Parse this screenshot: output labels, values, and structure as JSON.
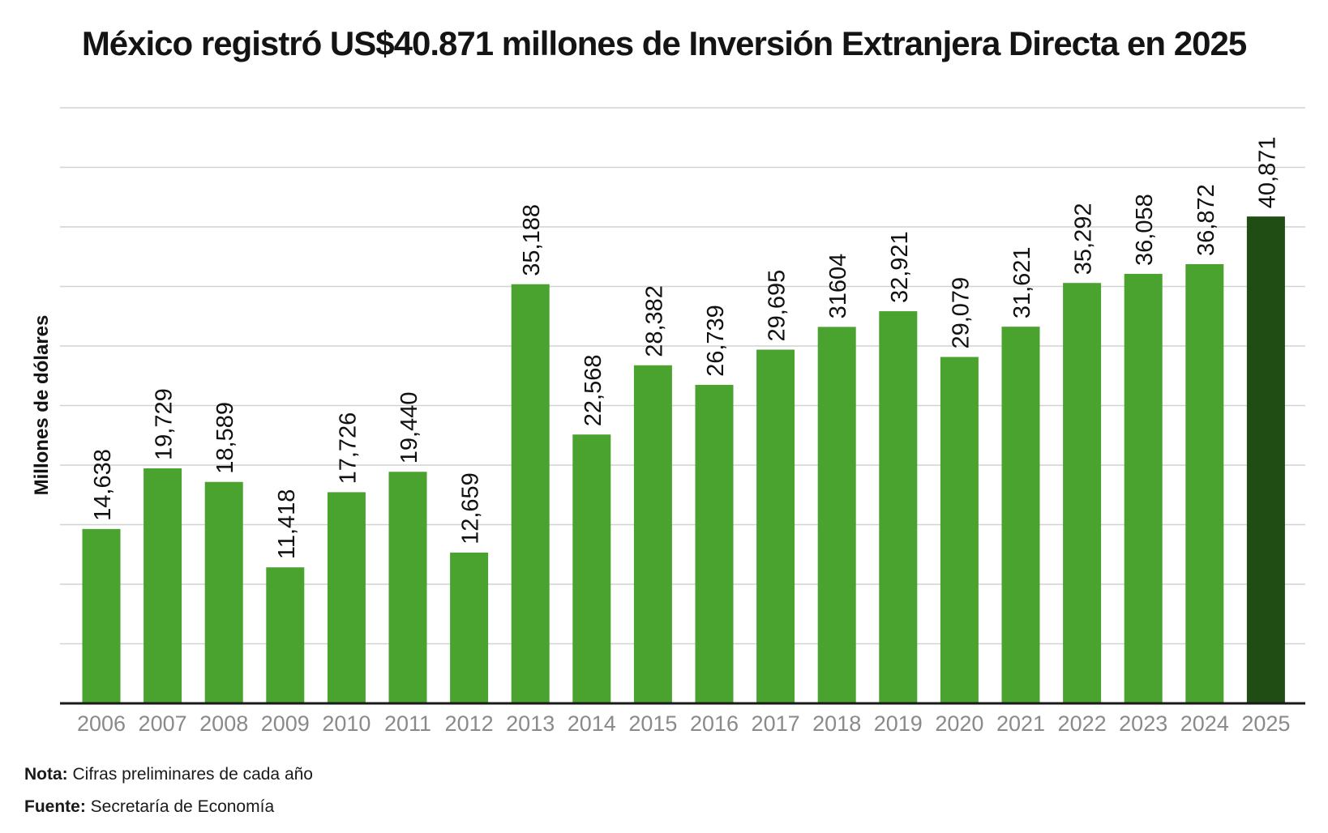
{
  "chart_data": {
    "type": "bar",
    "title": "México registró US$40.871 millones de Inversión Extranjera Directa en 2025",
    "xlabel": "",
    "ylabel": "Millones de dólares",
    "categories": [
      "2006",
      "2007",
      "2008",
      "2009",
      "2010",
      "2011",
      "2012",
      "2013",
      "2014",
      "2015",
      "2016",
      "2017",
      "2018",
      "2019",
      "2020",
      "2021",
      "2022",
      "2023",
      "2024",
      "2025"
    ],
    "values": [
      14638,
      19729,
      18589,
      11418,
      17726,
      19440,
      12659,
      35188,
      22568,
      28382,
      26739,
      29695,
      31604,
      32921,
      29079,
      31621,
      35292,
      36058,
      36872,
      40871
    ],
    "value_labels": [
      "14,638",
      "19,729",
      "18,589",
      "11,418",
      "17,726",
      "19,440",
      "12,659",
      "35,188",
      "22,568",
      "28,382",
      "26,739",
      "29,695",
      "31604",
      "32,921",
      "29,079",
      "31,621",
      "35,292",
      "36,058",
      "36,872",
      "40,871"
    ],
    "ylim": [
      0,
      50000
    ],
    "grid": true,
    "gridlines_count": 10,
    "colors": {
      "bar": "#4aa22f",
      "highlight": "#1f4d14"
    },
    "highlight_index": 19
  },
  "footer": {
    "note_label": "Nota:",
    "note_text": " Cifras preliminares de cada año",
    "source_label": "Fuente:",
    "source_text": " Secretaría de Economía"
  }
}
